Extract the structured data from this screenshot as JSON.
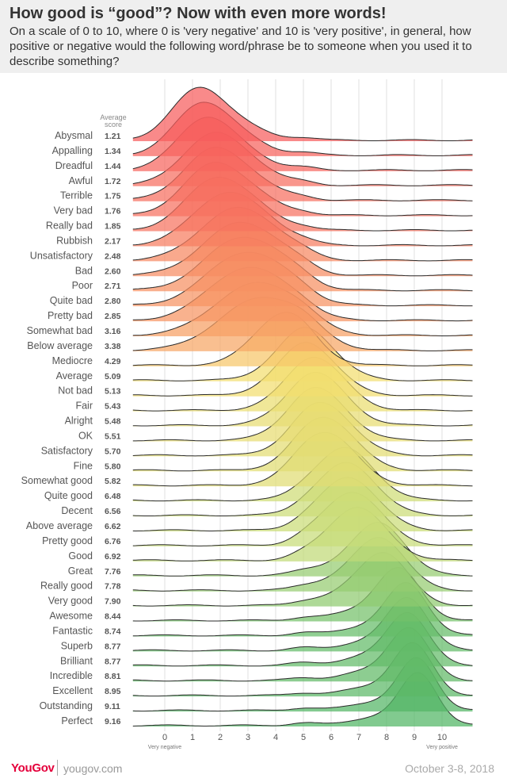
{
  "header": {
    "title": "How good is “good”? Now with even more words!",
    "subtitle": "On a scale of 0 to 10, where 0 is 'very negative' and 10 is 'very positive', in general, how positive or negative would the following word/phrase be to someone when you used it to describe something?"
  },
  "footer": {
    "brand_you": "You",
    "brand_gov": "Gov",
    "url": "yougov.com",
    "date": "October 3-8, 2018"
  },
  "chart_data": {
    "type": "ridgeline",
    "avg_label_line1": "Average",
    "avg_label_line2": "score",
    "x_ticks": [
      "0",
      "1",
      "2",
      "3",
      "4",
      "5",
      "6",
      "7",
      "8",
      "9",
      "10"
    ],
    "x_range": [
      0,
      10
    ],
    "x_low_label": "Very negative",
    "x_high_label": "Very positive",
    "series": [
      {
        "name": "Abysmal",
        "avg": 1.21
      },
      {
        "name": "Appalling",
        "avg": 1.34
      },
      {
        "name": "Dreadful",
        "avg": 1.44
      },
      {
        "name": "Awful",
        "avg": 1.72
      },
      {
        "name": "Terrible",
        "avg": 1.75
      },
      {
        "name": "Very bad",
        "avg": 1.76
      },
      {
        "name": "Really bad",
        "avg": 1.85
      },
      {
        "name": "Rubbish",
        "avg": 2.17
      },
      {
        "name": "Unsatisfactory",
        "avg": 2.48
      },
      {
        "name": "Bad",
        "avg": 2.6
      },
      {
        "name": "Poor",
        "avg": 2.71
      },
      {
        "name": "Quite bad",
        "avg": 2.8
      },
      {
        "name": "Pretty bad",
        "avg": 2.85
      },
      {
        "name": "Somewhat bad",
        "avg": 3.16
      },
      {
        "name": "Below average",
        "avg": 3.38
      },
      {
        "name": "Mediocre",
        "avg": 4.29
      },
      {
        "name": "Average",
        "avg": 5.09
      },
      {
        "name": "Not bad",
        "avg": 5.13
      },
      {
        "name": "Fair",
        "avg": 5.43
      },
      {
        "name": "Alright",
        "avg": 5.48
      },
      {
        "name": "OK",
        "avg": 5.51
      },
      {
        "name": "Satisfactory",
        "avg": 5.7
      },
      {
        "name": "Fine",
        "avg": 5.8
      },
      {
        "name": "Somewhat good",
        "avg": 5.82
      },
      {
        "name": "Quite good",
        "avg": 6.48
      },
      {
        "name": "Decent",
        "avg": 6.56
      },
      {
        "name": "Above average",
        "avg": 6.62
      },
      {
        "name": "Pretty good",
        "avg": 6.76
      },
      {
        "name": "Good",
        "avg": 6.92
      },
      {
        "name": "Great",
        "avg": 7.76
      },
      {
        "name": "Really good",
        "avg": 7.78
      },
      {
        "name": "Very good",
        "avg": 7.9
      },
      {
        "name": "Awesome",
        "avg": 8.44
      },
      {
        "name": "Fantastic",
        "avg": 8.74
      },
      {
        "name": "Superb",
        "avg": 8.77
      },
      {
        "name": "Brilliant",
        "avg": 8.77
      },
      {
        "name": "Incredible",
        "avg": 8.81
      },
      {
        "name": "Excellent",
        "avg": 8.95
      },
      {
        "name": "Outstanding",
        "avg": 9.11
      },
      {
        "name": "Perfect",
        "avg": 9.16
      }
    ]
  }
}
